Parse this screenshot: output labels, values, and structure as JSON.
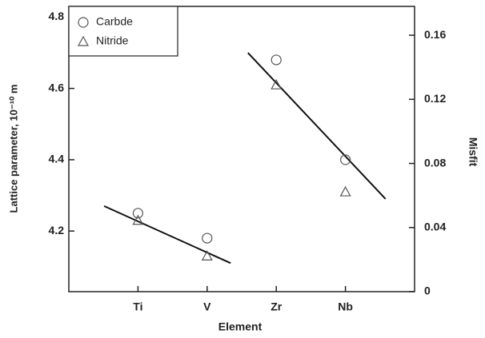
{
  "chart_data": {
    "type": "scatter",
    "xlabel": "Element",
    "ylabel": "Lattice parameter, 10⁻¹⁰ m",
    "y2label": "Misfit",
    "xlim": [
      0,
      5
    ],
    "xticks": [
      {
        "value": 1,
        "label": "Ti"
      },
      {
        "value": 2,
        "label": "V"
      },
      {
        "value": 3,
        "label": "Zr"
      },
      {
        "value": 4,
        "label": "Nb"
      }
    ],
    "ylim": [
      4.03,
      4.83
    ],
    "yticks": [
      4.2,
      4.4,
      4.6,
      4.8
    ],
    "y2lim": [
      0,
      0.178
    ],
    "y2ticks": [
      0,
      0.04,
      0.08,
      0.12,
      0.16
    ],
    "legend": "upper left",
    "series": [
      {
        "name": "Carbde",
        "marker": "circle",
        "color": "#555",
        "x": [
          1,
          2,
          3,
          4
        ],
        "values": [
          4.25,
          4.18,
          4.68,
          4.4
        ]
      },
      {
        "name": "Nitride",
        "marker": "triangle",
        "color": "#555",
        "x": [
          1,
          2,
          3,
          4
        ],
        "values": [
          4.23,
          4.13,
          4.61,
          4.31
        ]
      }
    ],
    "fit_lines": [
      {
        "color": "#111",
        "x": [
          0.51,
          2.34
        ],
        "values": [
          4.27,
          4.11
        ]
      },
      {
        "color": "#111",
        "x": [
          2.59,
          4.58
        ],
        "values": [
          4.7,
          4.29
        ]
      }
    ]
  }
}
